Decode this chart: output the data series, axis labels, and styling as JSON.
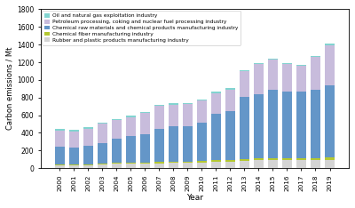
{
  "years": [
    2000,
    2001,
    2002,
    2003,
    2004,
    2005,
    2006,
    2007,
    2008,
    2009,
    2010,
    2011,
    2012,
    2013,
    2014,
    2015,
    2016,
    2017,
    2018,
    2019
  ],
  "oil_gas": [
    18,
    15,
    15,
    15,
    14,
    14,
    13,
    14,
    14,
    13,
    13,
    13,
    13,
    14,
    14,
    14,
    13,
    13,
    13,
    14
  ],
  "petroleum": [
    185,
    182,
    195,
    218,
    210,
    220,
    235,
    263,
    248,
    253,
    243,
    238,
    243,
    293,
    338,
    343,
    308,
    288,
    368,
    458
  ],
  "chemical_raw": [
    198,
    193,
    208,
    233,
    272,
    298,
    323,
    368,
    398,
    398,
    438,
    518,
    552,
    698,
    728,
    768,
    758,
    758,
    778,
    818
  ],
  "chemical_fiber": [
    8,
    7,
    8,
    10,
    14,
    14,
    14,
    17,
    17,
    17,
    19,
    21,
    21,
    24,
    24,
    24,
    21,
    21,
    24,
    27
  ],
  "rubber_plastic": [
    33,
    33,
    36,
    40,
    48,
    48,
    50,
    56,
    58,
    58,
    63,
    73,
    76,
    83,
    88,
    93,
    88,
    88,
    90,
    93
  ],
  "colors": {
    "oil_gas": "#82d4d0",
    "petroleum": "#c8bcdc",
    "chemical_raw": "#6496c8",
    "chemical_fiber": "#b4c832",
    "rubber_plastic": "#d4d4d4"
  },
  "labels": {
    "oil_gas": "Oil and natural gas exploitation industry",
    "petroleum": "Petroleum processing, coking and nuclear fuel processing industry",
    "chemical_raw": "Chemical raw materials and chemical products manufacturing industry",
    "chemical_fiber": "Chemical fiber manufacturing industry",
    "rubber_plastic": "Rubber and plastic products manufacturing industry"
  },
  "ylabel": "Carbon emissions / Mt",
  "xlabel": "Year",
  "ylim": [
    0,
    1800
  ],
  "yticks": [
    0,
    200,
    400,
    600,
    800,
    1000,
    1200,
    1400,
    1600,
    1800
  ],
  "stack_order": [
    "rubber_plastic",
    "chemical_fiber",
    "chemical_raw",
    "petroleum",
    "oil_gas"
  ],
  "legend_order": [
    "oil_gas",
    "petroleum",
    "chemical_raw",
    "chemical_fiber",
    "rubber_plastic"
  ]
}
